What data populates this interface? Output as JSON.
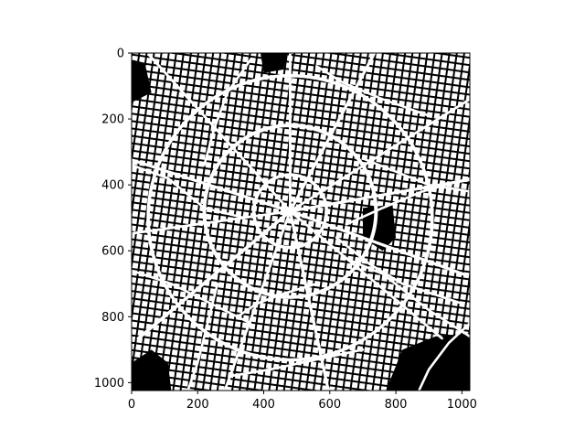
{
  "chart_data": {
    "type": "heatmap",
    "colormap": "binary (black background, white foreground)",
    "colors": {
      "background": "#000000",
      "foreground": "#ffffff",
      "frame": "#000000"
    },
    "x": {
      "range": [
        0,
        1024
      ],
      "ticks": [
        0,
        200,
        400,
        600,
        800,
        1000
      ],
      "tick_labels": [
        "0",
        "200",
        "400",
        "600",
        "800",
        "1000"
      ]
    },
    "y": {
      "range": [
        0,
        1024
      ],
      "inverted": true,
      "ticks": [
        0,
        200,
        400,
        600,
        800,
        1000
      ],
      "tick_labels": [
        "0",
        "200",
        "400",
        "600",
        "800",
        "1000"
      ]
    },
    "grid": false,
    "legend": "none",
    "rings": [
      {
        "cx": 480,
        "cy": 480,
        "r": 110,
        "width": 9
      },
      {
        "cx": 480,
        "cy": 480,
        "r": 260,
        "width": 10
      },
      {
        "cx": 480,
        "cy": 500,
        "r": 430,
        "width": 9
      }
    ],
    "radials": [
      {
        "angle": -90,
        "from": 0,
        "to": 560,
        "width": 7
      },
      {
        "angle": -62,
        "from": 0,
        "to": 620,
        "width": 8
      },
      {
        "angle": -32,
        "from": 0,
        "to": 640,
        "width": 7
      },
      {
        "angle": -10,
        "from": 0,
        "to": 640,
        "width": 8
      },
      {
        "angle": 20,
        "from": 0,
        "to": 560,
        "width": 8
      },
      {
        "angle": 40,
        "from": 0,
        "to": 600,
        "width": 7
      },
      {
        "angle": 78,
        "from": 0,
        "to": 620,
        "width": 8
      },
      {
        "angle": 110,
        "from": 0,
        "to": 640,
        "width": 7
      },
      {
        "angle": 140,
        "from": 0,
        "to": 600,
        "width": 9
      },
      {
        "angle": 172,
        "from": 0,
        "to": 600,
        "width": 7
      },
      {
        "angle": 198,
        "from": 0,
        "to": 620,
        "width": 8
      },
      {
        "angle": 228,
        "from": 0,
        "to": 640,
        "width": 7
      }
    ],
    "roads": [
      [
        [
          0,
          340
        ],
        [
          110,
          380
        ],
        [
          220,
          470
        ],
        [
          340,
          500
        ]
      ],
      [
        [
          360,
          20
        ],
        [
          290,
          120
        ],
        [
          250,
          230
        ],
        [
          220,
          340
        ]
      ],
      [
        [
          1024,
          380
        ],
        [
          880,
          420
        ],
        [
          760,
          470
        ],
        [
          650,
          520
        ]
      ],
      [
        [
          620,
          560
        ],
        [
          720,
          640
        ],
        [
          820,
          700
        ],
        [
          1000,
          760
        ]
      ],
      [
        [
          640,
          620
        ],
        [
          760,
          670
        ],
        [
          900,
          780
        ],
        [
          1024,
          860
        ]
      ],
      [
        [
          560,
          700
        ],
        [
          460,
          730
        ],
        [
          380,
          760
        ],
        [
          320,
          800
        ]
      ],
      [
        [
          260,
          700
        ],
        [
          230,
          820
        ],
        [
          200,
          940
        ],
        [
          170,
          1024
        ]
      ],
      [
        [
          300,
          980
        ],
        [
          420,
          960
        ],
        [
          560,
          930
        ],
        [
          700,
          900
        ]
      ],
      [
        [
          870,
          1024
        ],
        [
          900,
          960
        ],
        [
          960,
          880
        ],
        [
          1024,
          820
        ]
      ],
      [
        [
          560,
          40
        ],
        [
          640,
          90
        ],
        [
          760,
          140
        ],
        [
          900,
          190
        ]
      ],
      [
        [
          0,
          660
        ],
        [
          120,
          700
        ],
        [
          240,
          760
        ],
        [
          360,
          820
        ]
      ],
      [
        [
          700,
          320
        ],
        [
          800,
          360
        ],
        [
          900,
          400
        ],
        [
          1024,
          420
        ]
      ]
    ],
    "water": [
      [
        [
          770,
          1024
        ],
        [
          820,
          900
        ],
        [
          920,
          860
        ],
        [
          1024,
          850
        ],
        [
          1024,
          1024
        ]
      ],
      [
        [
          0,
          940
        ],
        [
          60,
          900
        ],
        [
          110,
          940
        ],
        [
          120,
          1024
        ],
        [
          0,
          1024
        ]
      ],
      [
        [
          700,
          470
        ],
        [
          790,
          460
        ],
        [
          800,
          560
        ],
        [
          760,
          600
        ],
        [
          700,
          560
        ]
      ],
      [
        [
          390,
          0
        ],
        [
          470,
          0
        ],
        [
          460,
          50
        ],
        [
          400,
          60
        ]
      ],
      [
        [
          0,
          20
        ],
        [
          40,
          30
        ],
        [
          60,
          120
        ],
        [
          0,
          150
        ]
      ]
    ]
  }
}
